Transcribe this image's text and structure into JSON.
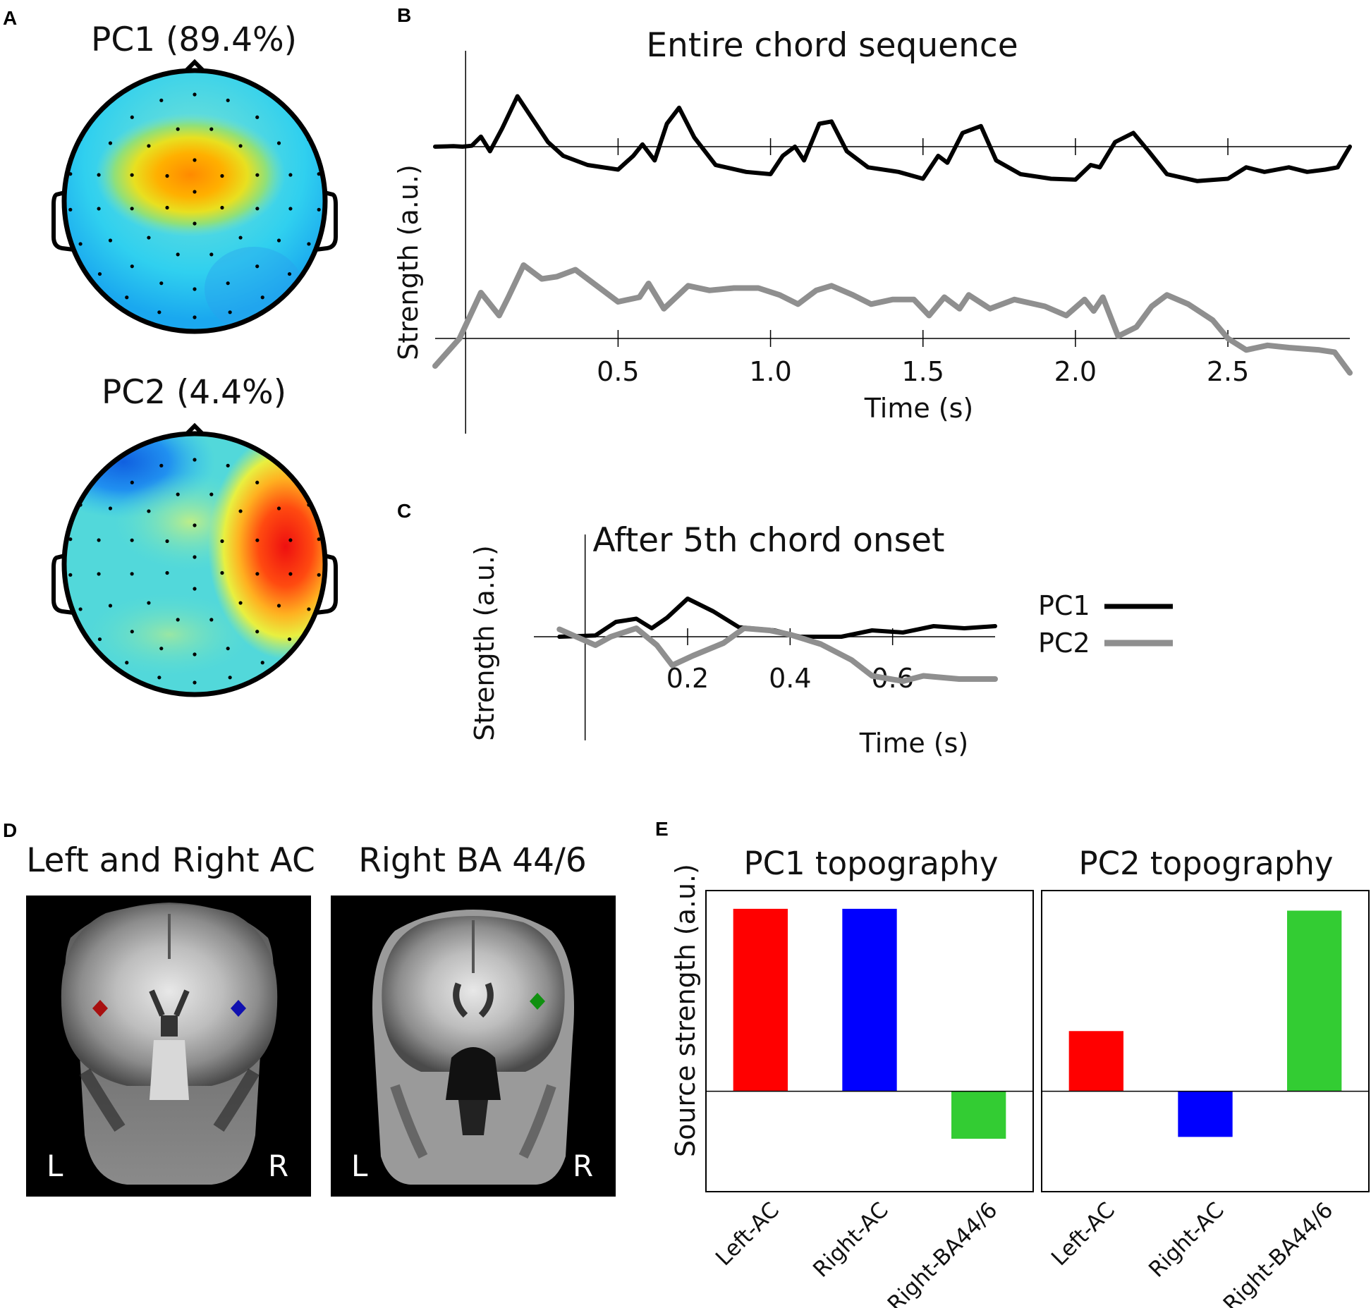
{
  "panel_labels": {
    "a": "A",
    "b": "B",
    "c": "C",
    "d": "D",
    "e": "E"
  },
  "colors": {
    "pc1": "#000000",
    "pc2": "#8f8f8f",
    "left_ac": "#ff0000",
    "right_ac": "#0000ff",
    "right_ba": "#33cc33"
  },
  "topo": {
    "pc1_title": "PC1 (89.4%)",
    "pc2_title": "PC2 (4.4%)"
  },
  "mri": {
    "left_title": "Left and Right AC",
    "right_title": "Right BA 44/6",
    "left_marker": "L",
    "right_marker": "R"
  },
  "chart_data": [
    {
      "id": "B",
      "type": "line",
      "title": "Entire chord sequence",
      "xlabel": "Time (s)",
      "ylabel": "Strength (a.u.)",
      "xlim": [
        -0.1,
        2.9
      ],
      "x_ticks": [
        "0.5",
        "1.0",
        "1.5",
        "2.0",
        "2.5"
      ],
      "x_tick_values": [
        0.5,
        1.0,
        1.5,
        2.0,
        2.5
      ],
      "series": [
        {
          "name": "PC1",
          "offset": 0,
          "points": [
            [
              -0.1,
              0
            ],
            [
              -0.04,
              0.01
            ],
            [
              -0.01,
              0.0
            ],
            [
              0.02,
              0.02
            ],
            [
              0.05,
              0.22
            ],
            [
              0.08,
              -0.1
            ],
            [
              0.12,
              0.4
            ],
            [
              0.17,
              1.1
            ],
            [
              0.22,
              0.6
            ],
            [
              0.27,
              0.1
            ],
            [
              0.32,
              -0.2
            ],
            [
              0.4,
              -0.4
            ],
            [
              0.5,
              -0.5
            ],
            [
              0.55,
              -0.2
            ],
            [
              0.58,
              0.05
            ],
            [
              0.62,
              -0.3
            ],
            [
              0.66,
              0.5
            ],
            [
              0.7,
              0.85
            ],
            [
              0.75,
              0.2
            ],
            [
              0.82,
              -0.4
            ],
            [
              0.92,
              -0.55
            ],
            [
              1.0,
              -0.6
            ],
            [
              1.04,
              -0.2
            ],
            [
              1.08,
              0.0
            ],
            [
              1.11,
              -0.3
            ],
            [
              1.16,
              0.5
            ],
            [
              1.2,
              0.55
            ],
            [
              1.25,
              -0.1
            ],
            [
              1.32,
              -0.45
            ],
            [
              1.42,
              -0.55
            ],
            [
              1.5,
              -0.7
            ],
            [
              1.55,
              -0.2
            ],
            [
              1.58,
              -0.35
            ],
            [
              1.63,
              0.3
            ],
            [
              1.69,
              0.45
            ],
            [
              1.74,
              -0.3
            ],
            [
              1.82,
              -0.6
            ],
            [
              1.92,
              -0.7
            ],
            [
              2.0,
              -0.72
            ],
            [
              2.05,
              -0.4
            ],
            [
              2.08,
              -0.45
            ],
            [
              2.13,
              0.1
            ],
            [
              2.19,
              0.3
            ],
            [
              2.24,
              -0.1
            ],
            [
              2.3,
              -0.6
            ],
            [
              2.4,
              -0.75
            ],
            [
              2.5,
              -0.7
            ],
            [
              2.56,
              -0.45
            ],
            [
              2.62,
              -0.55
            ],
            [
              2.7,
              -0.45
            ],
            [
              2.76,
              -0.55
            ],
            [
              2.82,
              -0.5
            ],
            [
              2.86,
              -0.45
            ],
            [
              2.9,
              0.0
            ]
          ]
        },
        {
          "name": "PC2",
          "offset": -2.2,
          "points": [
            [
              -0.1,
              -0.6
            ],
            [
              -0.02,
              0.0
            ],
            [
              0.05,
              1.0
            ],
            [
              0.11,
              0.5
            ],
            [
              0.14,
              0.9
            ],
            [
              0.19,
              1.6
            ],
            [
              0.25,
              1.3
            ],
            [
              0.3,
              1.35
            ],
            [
              0.36,
              1.5
            ],
            [
              0.42,
              1.2
            ],
            [
              0.5,
              0.8
            ],
            [
              0.57,
              0.9
            ],
            [
              0.6,
              1.2
            ],
            [
              0.65,
              0.65
            ],
            [
              0.73,
              1.15
            ],
            [
              0.8,
              1.05
            ],
            [
              0.88,
              1.1
            ],
            [
              0.96,
              1.1
            ],
            [
              1.03,
              0.95
            ],
            [
              1.09,
              0.75
            ],
            [
              1.15,
              1.05
            ],
            [
              1.2,
              1.15
            ],
            [
              1.27,
              0.95
            ],
            [
              1.33,
              0.75
            ],
            [
              1.4,
              0.85
            ],
            [
              1.47,
              0.85
            ],
            [
              1.52,
              0.5
            ],
            [
              1.57,
              0.9
            ],
            [
              1.62,
              0.65
            ],
            [
              1.65,
              0.95
            ],
            [
              1.72,
              0.65
            ],
            [
              1.8,
              0.85
            ],
            [
              1.9,
              0.7
            ],
            [
              1.97,
              0.5
            ],
            [
              2.03,
              0.85
            ],
            [
              2.06,
              0.6
            ],
            [
              2.09,
              0.9
            ],
            [
              2.14,
              0.05
            ],
            [
              2.2,
              0.25
            ],
            [
              2.25,
              0.7
            ],
            [
              2.3,
              0.95
            ],
            [
              2.37,
              0.75
            ],
            [
              2.45,
              0.4
            ],
            [
              2.5,
              0.0
            ],
            [
              2.56,
              -0.25
            ],
            [
              2.63,
              -0.15
            ],
            [
              2.7,
              -0.2
            ],
            [
              2.8,
              -0.25
            ],
            [
              2.85,
              -0.3
            ],
            [
              2.9,
              -0.75
            ]
          ]
        }
      ]
    },
    {
      "id": "C",
      "type": "line",
      "title": "After 5th chord onset",
      "xlabel": "Time (s)",
      "ylabel": "Strength (a.u.)",
      "xlim": [
        -0.1,
        0.8
      ],
      "x_ticks": [
        "0.2",
        "0.4",
        "0.6"
      ],
      "x_tick_values": [
        0.2,
        0.4,
        0.6
      ],
      "legend": [
        {
          "name": "PC1"
        },
        {
          "name": "PC2"
        }
      ],
      "series": [
        {
          "name": "PC1",
          "points": [
            [
              -0.05,
              0
            ],
            [
              0.02,
              0.06
            ],
            [
              0.06,
              0.7
            ],
            [
              0.1,
              0.85
            ],
            [
              0.13,
              0.4
            ],
            [
              0.16,
              0.9
            ],
            [
              0.2,
              1.8
            ],
            [
              0.25,
              1.2
            ],
            [
              0.3,
              0.45
            ],
            [
              0.37,
              0.3
            ],
            [
              0.42,
              0.0
            ],
            [
              0.5,
              0
            ],
            [
              0.56,
              0.3
            ],
            [
              0.62,
              0.2
            ],
            [
              0.68,
              0.5
            ],
            [
              0.74,
              0.4
            ],
            [
              0.8,
              0.5
            ]
          ]
        },
        {
          "name": "PC2",
          "points": [
            [
              -0.05,
              0.35
            ],
            [
              0.02,
              -0.4
            ],
            [
              0.05,
              0.0
            ],
            [
              0.1,
              0.4
            ],
            [
              0.14,
              -0.4
            ],
            [
              0.17,
              -1.35
            ],
            [
              0.21,
              -0.9
            ],
            [
              0.27,
              -0.3
            ],
            [
              0.31,
              0.4
            ],
            [
              0.36,
              0.3
            ],
            [
              0.4,
              0.1
            ],
            [
              0.46,
              -0.35
            ],
            [
              0.52,
              -1.1
            ],
            [
              0.56,
              -1.85
            ],
            [
              0.62,
              -2.1
            ],
            [
              0.66,
              -1.85
            ],
            [
              0.73,
              -2.0
            ],
            [
              0.8,
              -2.0
            ]
          ]
        }
      ]
    },
    {
      "id": "E1",
      "type": "bar",
      "title": "PC1 topography",
      "ylabel": "Source strength (a.u.)",
      "categories": [
        "Left-AC",
        "Right-AC",
        "Right-BA44/6"
      ],
      "values": [
        1.0,
        1.0,
        -0.26
      ],
      "ylim": [
        -0.55,
        1.1
      ]
    },
    {
      "id": "E2",
      "type": "bar",
      "title": "PC2 topography",
      "categories": [
        "Left-AC",
        "Right-AC",
        "Right-BA44/6"
      ],
      "values": [
        0.33,
        -0.25,
        0.99
      ],
      "ylim": [
        -0.55,
        1.1
      ]
    }
  ]
}
